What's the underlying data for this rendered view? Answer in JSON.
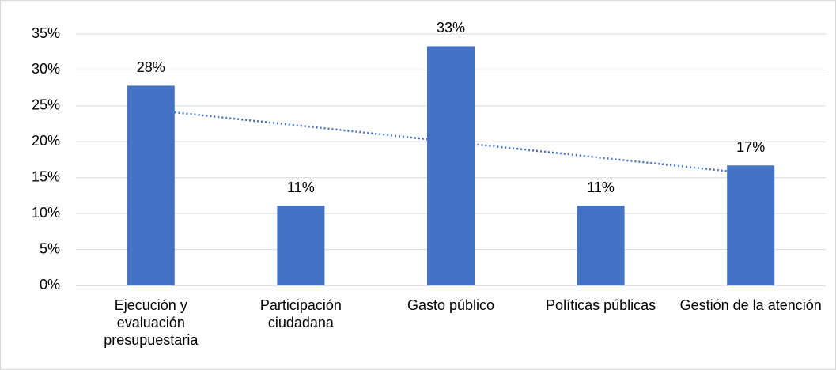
{
  "chart_data": {
    "type": "bar",
    "categories": [
      "Ejecución y evaluación presupuestaria",
      "Participación ciudadana",
      "Gasto público",
      "Políticas públicas",
      "Gestión de la atención"
    ],
    "values": [
      27.8,
      11.1,
      33.3,
      11.1,
      16.7
    ],
    "value_labels": [
      "28%",
      "11%",
      "33%",
      "11%",
      "17%"
    ],
    "color": "#4472c4",
    "ylim": [
      0,
      35
    ],
    "yticks": [
      {
        "value": 0,
        "label": "0%"
      },
      {
        "value": 5,
        "label": "5%"
      },
      {
        "value": 10,
        "label": "10%"
      },
      {
        "value": 15,
        "label": "15%"
      },
      {
        "value": 20,
        "label": "20%"
      },
      {
        "value": 25,
        "label": "25%"
      },
      {
        "value": 30,
        "label": "30%"
      },
      {
        "value": 35,
        "label": "35%"
      }
    ],
    "grid": true,
    "trendline": true
  }
}
